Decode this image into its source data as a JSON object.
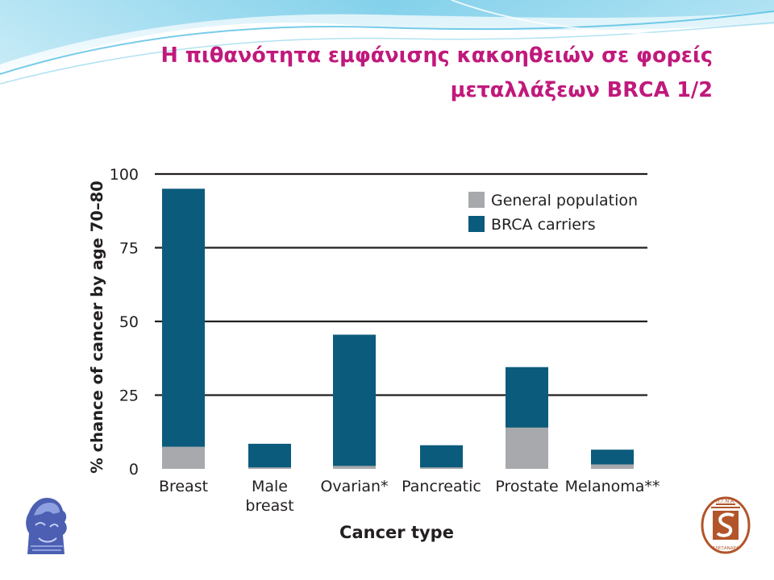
{
  "slide": {
    "title_line1": "Η πιθανότητα εμφάνισης κακοηθειών σε φορείς",
    "title_line2": "μεταλλάξεων BRCA 1/2"
  },
  "logos": {
    "left": "athena-head-logo",
    "right": "hospital-alexandra-logo",
    "right_text": "Π.Γ.Ν.Α. ΑΛΕΞΑΝΔΡΑ"
  },
  "colors": {
    "title": "#c0197c",
    "general_population": "#a7a9ac",
    "brca_carriers": "#0b5b7c",
    "gridline": "#231f20",
    "text": "#231f20"
  },
  "chart_data": {
    "type": "bar",
    "stacked": true,
    "categories": [
      [
        "Breast"
      ],
      [
        "Male",
        "breast"
      ],
      [
        "Ovarian*"
      ],
      [
        "Pancreatic"
      ],
      [
        "Prostate"
      ],
      [
        "Melanoma**"
      ]
    ],
    "series": [
      {
        "name": "General population",
        "values": [
          7.5,
          0.5,
          1,
          0.5,
          14,
          1.5
        ]
      },
      {
        "name": "BRCA carriers",
        "values": [
          95,
          8.5,
          45.5,
          8,
          34.5,
          6.5
        ]
      }
    ],
    "ylabel": "% chance of cancer by age 70–80",
    "xlabel": "Cancer type",
    "ylim": [
      0,
      100
    ],
    "yticks": [
      0,
      25,
      50,
      75,
      100
    ],
    "grid": true,
    "legend_position": "top-right"
  }
}
